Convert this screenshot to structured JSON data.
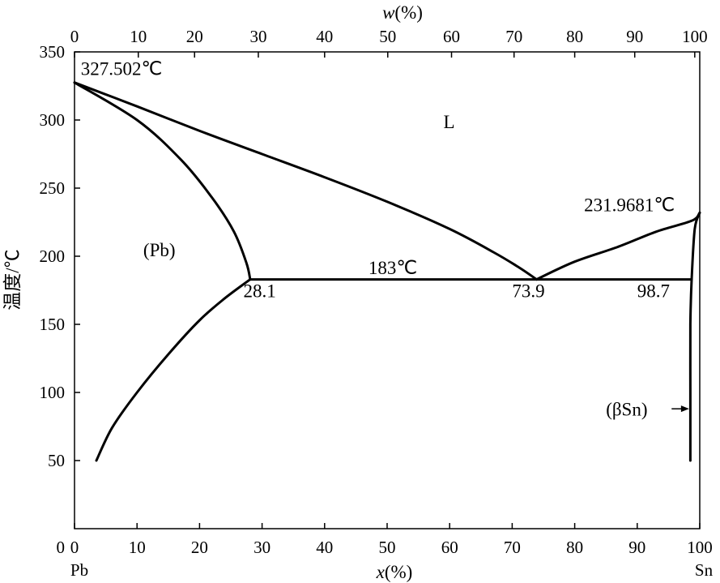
{
  "chart_data": {
    "type": "line",
    "title": "",
    "x_axis": {
      "label_prefix": "x",
      "label_suffix": "(%)",
      "range": [
        0,
        100
      ],
      "ticks": [
        0,
        10,
        20,
        30,
        40,
        50,
        60,
        70,
        80,
        90,
        100
      ],
      "end_labels": {
        "left": "Pb",
        "right": "Sn"
      }
    },
    "x2_axis": {
      "label_prefix": "w",
      "label_suffix": "(%)",
      "ticks": [
        {
          "label": "0",
          "x_mol": 0
        },
        {
          "label": "10",
          "x_mol": 10.2
        },
        {
          "label": "20",
          "x_mol": 19.2
        },
        {
          "label": "30",
          "x_mol": 29.4
        },
        {
          "label": "40",
          "x_mol": 40.0
        },
        {
          "label": "50",
          "x_mol": 50.1
        },
        {
          "label": "60",
          "x_mol": 60.3
        },
        {
          "label": "70",
          "x_mol": 70.3
        },
        {
          "label": "80",
          "x_mol": 80.0
        },
        {
          "label": "90",
          "x_mol": 89.6
        },
        {
          "label": "100",
          "x_mol": 99.2
        }
      ]
    },
    "y_axis": {
      "label": "温度/℃",
      "range": [
        0,
        350
      ],
      "ticks": [
        50,
        100,
        150,
        200,
        250,
        300,
        350
      ],
      "extra_tick_label": "0"
    },
    "series": [
      {
        "points": [
          [
            0,
            327.5
          ],
          [
            10,
            310
          ],
          [
            20,
            292
          ],
          [
            30,
            275
          ],
          [
            40,
            258
          ],
          [
            50,
            240
          ],
          [
            60,
            220
          ],
          [
            67,
            203
          ],
          [
            71,
            192
          ],
          [
            73.9,
            183
          ]
        ]
      },
      {
        "points": [
          [
            0,
            327.5
          ],
          [
            10,
            300
          ],
          [
            17,
            271
          ],
          [
            22,
            243
          ],
          [
            25.5,
            218
          ],
          [
            27.5,
            195
          ],
          [
            28.1,
            183
          ]
        ]
      },
      {
        "points": [
          [
            3.5,
            50
          ],
          [
            6,
            74
          ],
          [
            10,
            100
          ],
          [
            15,
            128
          ],
          [
            20,
            153
          ],
          [
            24,
            169
          ],
          [
            28.1,
            183
          ]
        ]
      },
      {
        "points": [
          [
            28.1,
            183
          ],
          [
            98.7,
            183
          ]
        ]
      },
      {
        "points": [
          [
            73.9,
            183
          ],
          [
            80,
            196
          ],
          [
            87,
            207
          ],
          [
            93,
            218
          ],
          [
            98.7,
            226
          ],
          [
            100,
            231.97
          ]
        ]
      },
      {
        "points": [
          [
            100,
            231.97
          ],
          [
            99.2,
            220
          ],
          [
            98.7,
            183
          ],
          [
            98.5,
            150
          ],
          [
            98.5,
            100
          ],
          [
            98.5,
            50
          ]
        ]
      }
    ],
    "annotations": [
      {
        "text": "327.502℃",
        "x": 1,
        "y": 333
      },
      {
        "text": "L",
        "x": 59,
        "y": 294
      },
      {
        "text": "(Pb)",
        "x": 11,
        "y": 200
      },
      {
        "text": "183℃",
        "x": 47,
        "y": 187
      },
      {
        "text": "28.1",
        "x": 27,
        "y": 170
      },
      {
        "text": "73.9",
        "x": 70,
        "y": 170
      },
      {
        "text": "231.9681℃",
        "x": 81.5,
        "y": 233
      },
      {
        "text": "98.7",
        "x": 90,
        "y": 170
      },
      {
        "text": "(βSn)",
        "x": 85,
        "y": 83
      }
    ],
    "arrow": {
      "from": [
        95.5,
        88
      ],
      "to": [
        98.3,
        88
      ]
    },
    "grid": false,
    "legend": "none"
  }
}
